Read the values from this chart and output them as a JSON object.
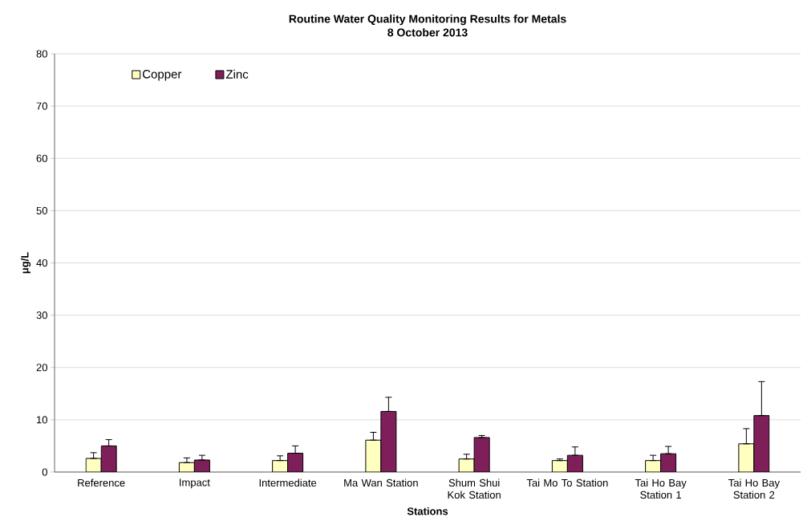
{
  "chart_data": {
    "type": "bar",
    "title": "Routine Water Quality Monitoring Results for Metals",
    "subtitle": "8 October 2013",
    "xlabel": "Stations",
    "ylabel": "μg/L",
    "categories": [
      "Reference",
      "Impact",
      "Intermediate",
      "Ma Wan Station",
      "Shum Shui Kok Station",
      "Tai Mo To Station",
      "Tai Ho Bay Station 1",
      "Tai Ho Bay Station 2"
    ],
    "series": [
      {
        "name": "Copper",
        "color": "#ffffc0",
        "values": [
          2.6,
          1.8,
          2.2,
          6.1,
          2.5,
          2.2,
          2.2,
          5.4
        ],
        "errors": [
          [
            2.6,
            3.7
          ],
          [
            1.8,
            2.7
          ],
          [
            2.2,
            3.1
          ],
          [
            6.1,
            7.6
          ],
          [
            2.5,
            3.4
          ],
          [
            2.2,
            2.5
          ],
          [
            2.2,
            3.2
          ],
          [
            5.4,
            8.3
          ]
        ]
      },
      {
        "name": "Zinc",
        "color": "#7f1f5a",
        "values": [
          5.0,
          2.3,
          3.6,
          11.6,
          6.6,
          3.2,
          3.5,
          10.8
        ],
        "errors": [
          [
            5.0,
            6.2
          ],
          [
            2.3,
            3.2
          ],
          [
            3.6,
            5.0
          ],
          [
            11.6,
            14.3
          ],
          [
            6.6,
            7.0
          ],
          [
            3.2,
            4.8
          ],
          [
            3.5,
            4.9
          ],
          [
            10.8,
            17.3
          ]
        ]
      }
    ],
    "ylim": [
      0,
      80
    ],
    "yticks": [
      0,
      10,
      20,
      30,
      40,
      50,
      60,
      70,
      80
    ],
    "grid": "y",
    "legend": "top left"
  }
}
